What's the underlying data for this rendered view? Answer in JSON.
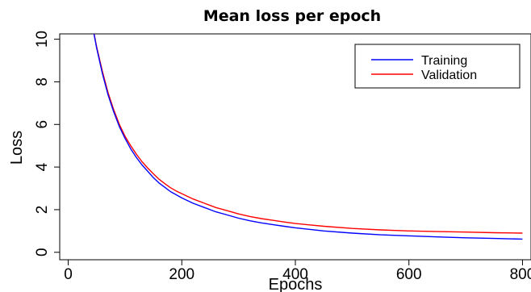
{
  "chart_data": {
    "type": "line",
    "title": "Mean loss per epoch",
    "xlabel": "Epochs",
    "ylabel": "Loss",
    "xlim": [
      -15,
      815
    ],
    "ylim": [
      -0.35,
      10.25
    ],
    "x_ticks": [
      0,
      200,
      400,
      600,
      800
    ],
    "x_tick_labels": [
      "0",
      "200",
      "400",
      "600",
      "800"
    ],
    "y_ticks": [
      0,
      2,
      4,
      6,
      8,
      10
    ],
    "y_tick_labels": [
      "0",
      "2",
      "4",
      "6",
      "8",
      "10"
    ],
    "grid": false,
    "legend_position": "top-right",
    "series": [
      {
        "name": "Training",
        "color": "#0000ff",
        "x": [
          40,
          50,
          60,
          70,
          80,
          90,
          100,
          110,
          120,
          130,
          140,
          150,
          160,
          170,
          180,
          190,
          200,
          220,
          240,
          260,
          280,
          300,
          320,
          340,
          360,
          380,
          400,
          450,
          500,
          550,
          600,
          650,
          700,
          750,
          800
        ],
        "values": [
          11.0,
          9.6,
          8.4,
          7.4,
          6.6,
          5.9,
          5.35,
          4.85,
          4.45,
          4.1,
          3.8,
          3.5,
          3.25,
          3.05,
          2.85,
          2.7,
          2.55,
          2.3,
          2.1,
          1.9,
          1.75,
          1.6,
          1.48,
          1.38,
          1.3,
          1.22,
          1.15,
          1.0,
          0.9,
          0.82,
          0.77,
          0.72,
          0.68,
          0.65,
          0.62
        ]
      },
      {
        "name": "Validation",
        "color": "#ff0000",
        "x": [
          40,
          50,
          60,
          70,
          80,
          90,
          100,
          110,
          120,
          130,
          140,
          150,
          160,
          170,
          180,
          190,
          200,
          220,
          240,
          260,
          280,
          300,
          320,
          340,
          360,
          380,
          400,
          450,
          500,
          550,
          600,
          650,
          700,
          750,
          800
        ],
        "values": [
          11.0,
          9.65,
          8.5,
          7.5,
          6.7,
          6.0,
          5.45,
          5.0,
          4.6,
          4.25,
          3.95,
          3.68,
          3.43,
          3.22,
          3.03,
          2.88,
          2.75,
          2.5,
          2.3,
          2.1,
          1.95,
          1.8,
          1.68,
          1.58,
          1.5,
          1.42,
          1.35,
          1.22,
          1.12,
          1.05,
          1.0,
          0.97,
          0.95,
          0.92,
          0.9
        ]
      }
    ]
  }
}
